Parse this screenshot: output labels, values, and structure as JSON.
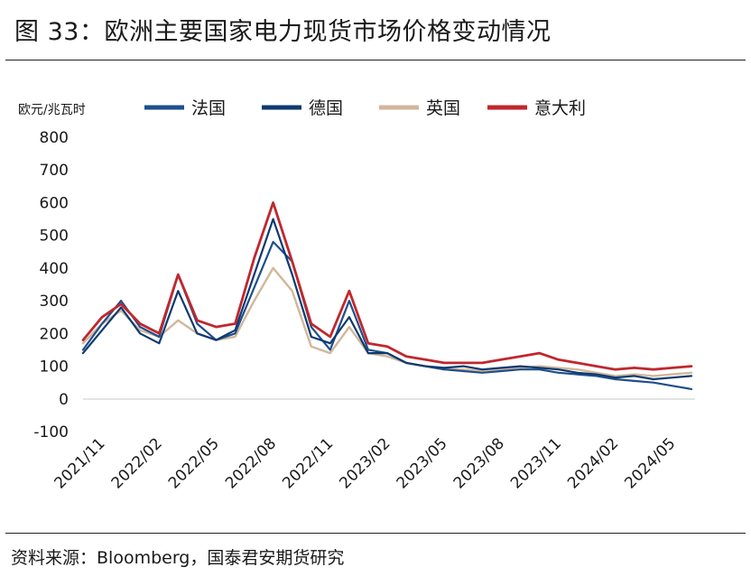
{
  "title": "图 33：欧洲主要国家电力现货市场价格变动情况",
  "source": "资料来源：Bloomberg，国泰君安期货研究",
  "chart_data": {
    "type": "line",
    "title": "",
    "xlabel": "",
    "ylabel": "欧元/兆瓦时",
    "ylim": [
      -100,
      800
    ],
    "yticks": [
      -100,
      0,
      100,
      200,
      300,
      400,
      500,
      600,
      700,
      800
    ],
    "xticks": [
      "2021/11",
      "2022/02",
      "2022/05",
      "2022/08",
      "2022/11",
      "2023/02",
      "2023/05",
      "2023/08",
      "2023/11",
      "2024/02",
      "2024/05"
    ],
    "grid": false,
    "legend": "top",
    "x": [
      "2021/10",
      "2021/11",
      "2021/12",
      "2022/01",
      "2022/02",
      "2022/03",
      "2022/04",
      "2022/05",
      "2022/06",
      "2022/07",
      "2022/08",
      "2022/09",
      "2022/10",
      "2022/11",
      "2022/12",
      "2023/01",
      "2023/02",
      "2023/03",
      "2023/04",
      "2023/05",
      "2023/06",
      "2023/07",
      "2023/08",
      "2023/09",
      "2023/10",
      "2023/11",
      "2023/12",
      "2024/01",
      "2024/02",
      "2024/03",
      "2024/04",
      "2024/05",
      "2024/06"
    ],
    "series": [
      {
        "name": "法国",
        "color": "#1f4e8c",
        "values": [
          150,
          230,
          300,
          220,
          190,
          380,
          230,
          180,
          200,
          340,
          480,
          420,
          220,
          150,
          300,
          150,
          140,
          110,
          100,
          90,
          85,
          80,
          85,
          90,
          90,
          80,
          75,
          70,
          60,
          55,
          50,
          40,
          30
        ]
      },
      {
        "name": "德国",
        "color": "#0d3a6e",
        "values": [
          140,
          210,
          280,
          200,
          170,
          330,
          200,
          180,
          210,
          380,
          550,
          380,
          190,
          170,
          250,
          140,
          140,
          110,
          100,
          95,
          100,
          90,
          95,
          100,
          95,
          90,
          80,
          75,
          65,
          70,
          60,
          65,
          70
        ]
      },
      {
        "name": "英国",
        "color": "#d2b79c",
        "values": [
          170,
          230,
          270,
          210,
          190,
          240,
          200,
          180,
          190,
          300,
          400,
          330,
          160,
          140,
          220,
          140,
          130,
          110,
          100,
          90,
          90,
          85,
          90,
          95,
          100,
          95,
          90,
          80,
          70,
          75,
          70,
          75,
          80
        ]
      },
      {
        "name": "意大利",
        "color": "#c0272d",
        "values": [
          180,
          250,
          290,
          230,
          200,
          380,
          240,
          220,
          230,
          430,
          600,
          420,
          230,
          190,
          330,
          170,
          160,
          130,
          120,
          110,
          110,
          110,
          120,
          130,
          140,
          120,
          110,
          100,
          90,
          95,
          90,
          95,
          100
        ]
      }
    ]
  }
}
